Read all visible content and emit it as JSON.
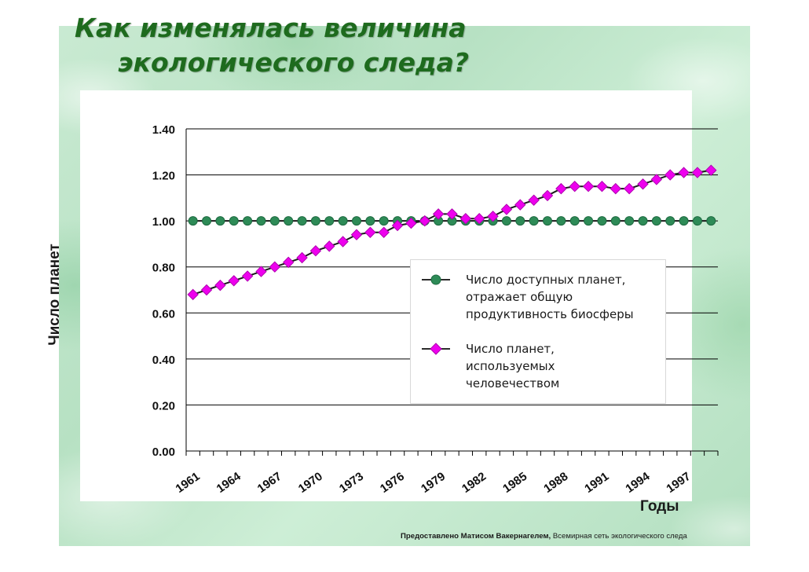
{
  "slide": {
    "title_line1": "Как изменялась величина",
    "title_line2": "экологического следа?",
    "credit_bold": "Предоставлено Матисом Вакернагелем,",
    "credit_normal": " Всемирная сеть экологического следа"
  },
  "chart_data": {
    "type": "line",
    "title": "Как изменялась величина экологического следа?",
    "xlabel": "Годы",
    "ylabel": "Число планет",
    "ylim": [
      0,
      1.4
    ],
    "yticks": [
      "0.00",
      "0.20",
      "0.40",
      "0.60",
      "0.80",
      "1.00",
      "1.20",
      "1.40"
    ],
    "xtick_labels": [
      "1961",
      "1964",
      "1967",
      "1970",
      "1973",
      "1976",
      "1979",
      "1982",
      "1985",
      "1988",
      "1991",
      "1994",
      "1997"
    ],
    "x": [
      1961,
      1962,
      1963,
      1964,
      1965,
      1966,
      1967,
      1968,
      1969,
      1970,
      1971,
      1972,
      1973,
      1974,
      1975,
      1976,
      1977,
      1978,
      1979,
      1980,
      1981,
      1982,
      1983,
      1984,
      1985,
      1986,
      1987,
      1988,
      1989,
      1990,
      1991,
      1992,
      1993,
      1994,
      1995,
      1996,
      1997,
      1998,
      1999
    ],
    "grid": "horizontal",
    "legend_position": "lower-right",
    "series": [
      {
        "name": "Число доступных планет, отражает общую продуктивность биосферы",
        "legend_text": "Число доступных планет,\nотражает общую\nпродуктивность биосферы",
        "color": "#2e8b57",
        "marker": "circle",
        "values": [
          1.0,
          1.0,
          1.0,
          1.0,
          1.0,
          1.0,
          1.0,
          1.0,
          1.0,
          1.0,
          1.0,
          1.0,
          1.0,
          1.0,
          1.0,
          1.0,
          1.0,
          1.0,
          1.0,
          1.0,
          1.0,
          1.0,
          1.0,
          1.0,
          1.0,
          1.0,
          1.0,
          1.0,
          1.0,
          1.0,
          1.0,
          1.0,
          1.0,
          1.0,
          1.0,
          1.0,
          1.0,
          1.0,
          1.0
        ]
      },
      {
        "name": "Число планет, используемых человечеством",
        "legend_text": "Число планет,\nиспользуемых\nчеловечеством",
        "color": "#ee00ee",
        "marker": "diamond",
        "values": [
          0.68,
          0.7,
          0.72,
          0.74,
          0.76,
          0.78,
          0.8,
          0.82,
          0.84,
          0.87,
          0.89,
          0.91,
          0.94,
          0.95,
          0.95,
          0.98,
          0.99,
          1.0,
          1.03,
          1.03,
          1.01,
          1.01,
          1.02,
          1.05,
          1.07,
          1.09,
          1.11,
          1.14,
          1.15,
          1.15,
          1.15,
          1.14,
          1.14,
          1.16,
          1.18,
          1.2,
          1.21,
          1.21,
          1.22
        ]
      }
    ]
  }
}
